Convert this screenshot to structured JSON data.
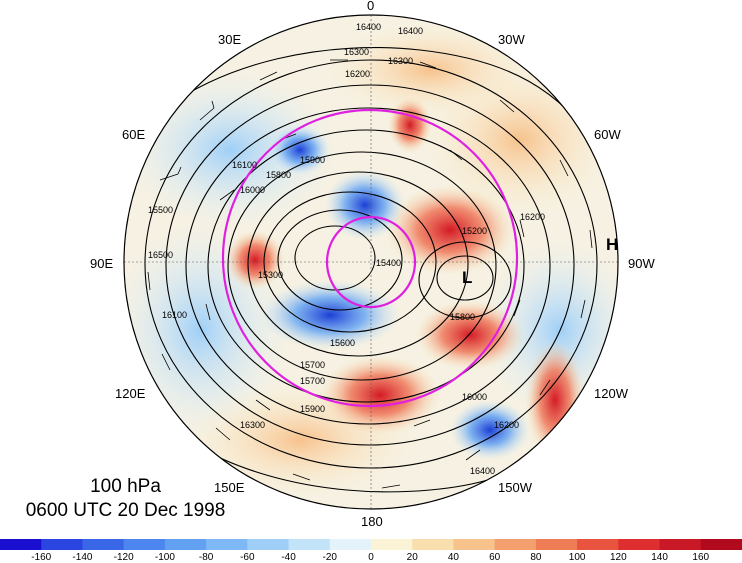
{
  "caption": {
    "level": "100 hPa",
    "time": "0600 UTC 20 Dec 1998"
  },
  "longitude_labels": [
    "0",
    "30W",
    "60W",
    "90W",
    "120W",
    "150W",
    "180",
    "150E",
    "120E",
    "90E",
    "60E",
    "30E"
  ],
  "contour_labels": [
    "16400",
    "16400",
    "16300",
    "16300",
    "16200",
    "16200",
    "16100",
    "16000",
    "15900",
    "15800",
    "15700",
    "15600",
    "15500",
    "15400",
    "15300",
    "15200",
    "15700",
    "15800",
    "15900",
    "16000",
    "16100",
    "16200",
    "16300",
    "16400",
    "16500"
  ],
  "pressure_centers": {
    "low": "L",
    "high": "H"
  },
  "colorbar": {
    "ticks": [
      "-160",
      "-140",
      "-120",
      "-100",
      "-80",
      "-60",
      "-40",
      "-20",
      "0",
      "20",
      "40",
      "60",
      "80",
      "100",
      "120",
      "140",
      "160"
    ],
    "colors": [
      "#1a0fd0",
      "#2a45e0",
      "#3a67e8",
      "#4c86ee",
      "#62a0f2",
      "#7fb9f5",
      "#9fcff7",
      "#c3e3f9",
      "#e4f3fa",
      "#fbf3d6",
      "#f9dfae",
      "#f7c28c",
      "#f3a06e",
      "#ee7c55",
      "#e8543f",
      "#de2e2f",
      "#c91826",
      "#b10a1e"
    ]
  },
  "map_colors": {
    "warm": "#e8443a",
    "cool": "#3d73e0",
    "circle": "#e020e0"
  }
}
